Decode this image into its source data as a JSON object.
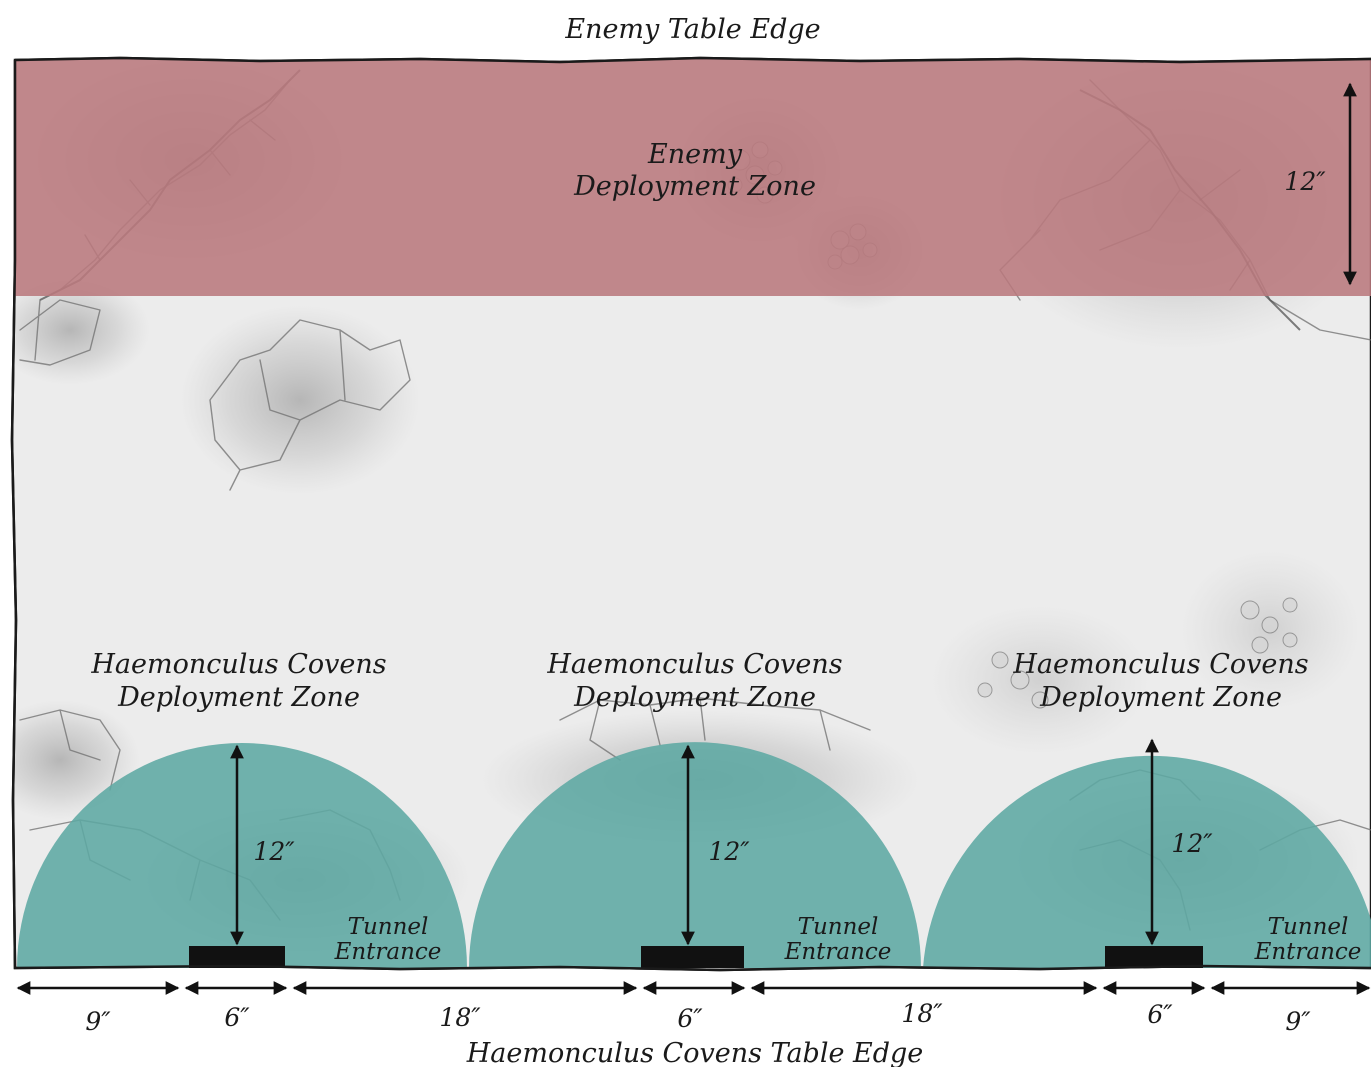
{
  "table": {
    "top_edge_label": "Enemy Table Edge",
    "bottom_edge_label": "Haemonculus Covens Table Edge"
  },
  "enemy_zone": {
    "label_line1": "Enemy",
    "label_line2": "Deployment Zone",
    "depth_label": "12″",
    "color": "#b9797d"
  },
  "covens_zones": [
    {
      "label_line1": "Haemonculus Covens",
      "label_line2": "Deployment Zone",
      "radius_label": "12″",
      "tunnel_line1": "Tunnel",
      "tunnel_line2": "Entrance"
    },
    {
      "label_line1": "Haemonculus Covens",
      "label_line2": "Deployment Zone",
      "radius_label": "12″",
      "tunnel_line1": "Tunnel",
      "tunnel_line2": "Entrance"
    },
    {
      "label_line1": "Haemonculus Covens",
      "label_line2": "Deployment Zone",
      "radius_label": "12″",
      "tunnel_line1": "Tunnel",
      "tunnel_line2": "Entrance"
    }
  ],
  "covens_zone_color": "#5da8a3",
  "tunnel_color": "#111111",
  "bottom_measurements": [
    "9″",
    "6″",
    "18″",
    "6″",
    "18″",
    "6″",
    "9″"
  ]
}
